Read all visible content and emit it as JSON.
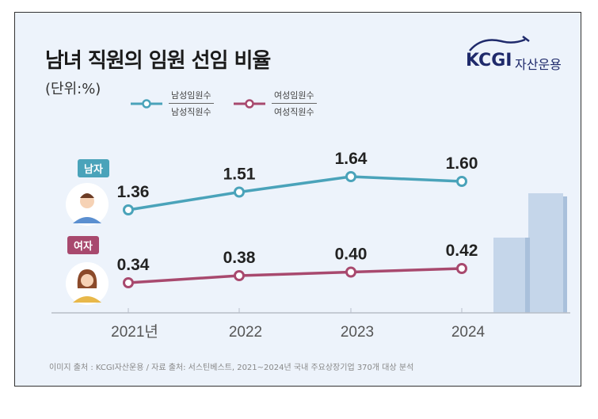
{
  "title": "남녀 직원의 임원 선임 비율",
  "unit": "(단위:%)",
  "logo": {
    "brand": "KCGI",
    "sub": "자산운용"
  },
  "badges": {
    "male": "남자",
    "female": "여자"
  },
  "footer": "이미지 출처 : KCGI자산운용 / 자료 출처: 서스틴베스트, 2021~2024년 국내 주요상장기업 370개 대상 분석",
  "colors": {
    "male": "#4aa3ba",
    "female": "#a8496e",
    "bg": "#edf3fb"
  },
  "chart_data": {
    "type": "line",
    "title": "남녀 직원의 임원 선임 비율",
    "categories": [
      "2021년",
      "2022",
      "2023",
      "2024"
    ],
    "series": [
      {
        "name": "남성임원수/남성직원수",
        "numerator": "남성임원수",
        "denominator": "남성직원수",
        "values": [
          1.36,
          1.51,
          1.64,
          1.6
        ]
      },
      {
        "name": "여성임원수/여성직원수",
        "numerator": "여성임원수",
        "denominator": "여성직원수",
        "values": [
          0.34,
          0.38,
          0.4,
          0.42
        ]
      }
    ],
    "ylabel": "%",
    "grid": false,
    "legend": "top-left"
  }
}
